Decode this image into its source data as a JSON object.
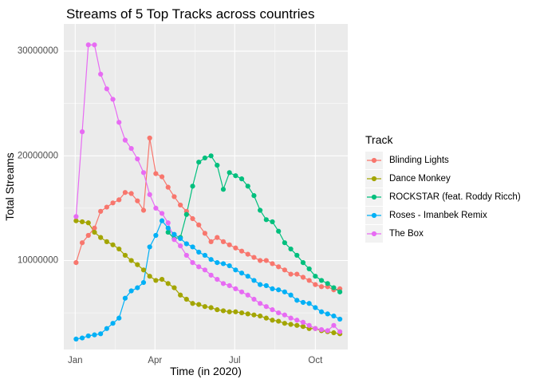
{
  "colors": {
    "panel": "#ebebeb",
    "grid_major": "#ffffff",
    "text": "#000000",
    "tick_text": "#4d4d4d",
    "legend_key_bg": "#f2f2f2"
  },
  "chart_data": {
    "type": "line",
    "title": "Streams of 5 Top Tracks across countries",
    "xlabel": "Time (in 2020)",
    "ylabel": "Total Streams",
    "x_ticks": [
      "Jan",
      "Apr",
      "Jul",
      "Oct"
    ],
    "y_ticks": [
      "10000000",
      "20000000",
      "30000000"
    ],
    "ylim": [
      1500000,
      32600000
    ],
    "grid": true,
    "legend_position": "right",
    "legend_title": "Track",
    "x": [
      "2020-01-02",
      "2020-01-09",
      "2020-01-16",
      "2020-01-23",
      "2020-01-30",
      "2020-02-06",
      "2020-02-13",
      "2020-02-20",
      "2020-02-27",
      "2020-03-05",
      "2020-03-12",
      "2020-03-19",
      "2020-03-26",
      "2020-04-02",
      "2020-04-09",
      "2020-04-16",
      "2020-04-23",
      "2020-04-30",
      "2020-05-07",
      "2020-05-14",
      "2020-05-21",
      "2020-05-28",
      "2020-06-04",
      "2020-06-11",
      "2020-06-18",
      "2020-06-25",
      "2020-07-02",
      "2020-07-09",
      "2020-07-16",
      "2020-07-23",
      "2020-07-30",
      "2020-08-06",
      "2020-08-13",
      "2020-08-20",
      "2020-08-27",
      "2020-09-03",
      "2020-09-10",
      "2020-09-17",
      "2020-09-24",
      "2020-10-01",
      "2020-10-08",
      "2020-10-15",
      "2020-10-22",
      "2020-10-29"
    ],
    "series": [
      {
        "name": "Blinding Lights",
        "color": "#F8766D",
        "values": [
          9800000,
          11700000,
          12400000,
          13100000,
          14700000,
          15100000,
          15500000,
          15800000,
          16500000,
          16400000,
          15700000,
          14800000,
          21700000,
          18300000,
          18000000,
          17000000,
          16100000,
          15300000,
          14700000,
          14000000,
          13400000,
          12600000,
          11800000,
          12200000,
          11800000,
          11500000,
          11200000,
          10900000,
          10600000,
          10300000,
          10000000,
          10000000,
          9700000,
          9400000,
          9100000,
          8700000,
          8700000,
          8400000,
          8100000,
          7700000,
          7500000,
          7500000,
          7200000,
          7300000
        ]
      },
      {
        "name": "Dance Monkey",
        "color": "#A3A500",
        "values": [
          13800000,
          13700000,
          13600000,
          12700000,
          12200000,
          11800000,
          11500000,
          11100000,
          10500000,
          10000000,
          9600000,
          9100000,
          8500000,
          8100000,
          8200000,
          7800000,
          7400000,
          6700000,
          6300000,
          5900000,
          5800000,
          5600000,
          5500000,
          5300000,
          5200000,
          5100000,
          5100000,
          5000000,
          4900000,
          4800000,
          4700000,
          4500000,
          4300000,
          4200000,
          4000000,
          3900000,
          3800000,
          3700000,
          3500000,
          3500000,
          3300000,
          3200000,
          3100000,
          3000000
        ]
      },
      {
        "name": "ROCKSTAR (feat. Roddy Ricch)",
        "color": "#00BF7D",
        "values": [
          null,
          null,
          null,
          null,
          null,
          null,
          null,
          null,
          null,
          null,
          null,
          null,
          null,
          null,
          null,
          12700000,
          12100000,
          12200000,
          14400000,
          17100000,
          19400000,
          19800000,
          20000000,
          19100000,
          16800000,
          18400000,
          18100000,
          17800000,
          17100000,
          16200000,
          14800000,
          13900000,
          13700000,
          12800000,
          11700000,
          11100000,
          10500000,
          9800000,
          9200000,
          8500000,
          8100000,
          7800000,
          7400000,
          7000000
        ]
      },
      {
        "name": "Roses - Imanbek Remix",
        "color": "#00B0F6",
        "values": [
          2500000,
          2600000,
          2800000,
          2900000,
          3000000,
          3500000,
          4000000,
          4500000,
          6400000,
          7100000,
          7400000,
          7900000,
          11300000,
          12400000,
          13800000,
          13100000,
          12500000,
          12100000,
          11600000,
          11300000,
          10800000,
          10500000,
          10100000,
          9800000,
          9700000,
          9500000,
          9100000,
          8800000,
          8500000,
          8100000,
          7700000,
          7600000,
          7300000,
          7200000,
          7000000,
          6700000,
          6200000,
          6000000,
          5900000,
          5500000,
          5100000,
          4900000,
          4700000,
          4400000
        ]
      },
      {
        "name": "The Box",
        "color": "#E76BF3",
        "values": [
          14200000,
          22300000,
          30600000,
          30600000,
          27800000,
          26400000,
          25400000,
          23200000,
          21500000,
          20700000,
          19700000,
          18400000,
          16300000,
          15000000,
          14500000,
          13600000,
          12000000,
          11400000,
          10500000,
          9800000,
          9400000,
          9100000,
          8600000,
          8200000,
          7800000,
          7600000,
          7300000,
          7000000,
          6700000,
          6300000,
          5900000,
          5600000,
          5300000,
          5000000,
          4800000,
          4500000,
          4300000,
          4100000,
          3800000,
          3500000,
          3400000,
          3300000,
          3800000,
          3200000
        ]
      }
    ]
  }
}
